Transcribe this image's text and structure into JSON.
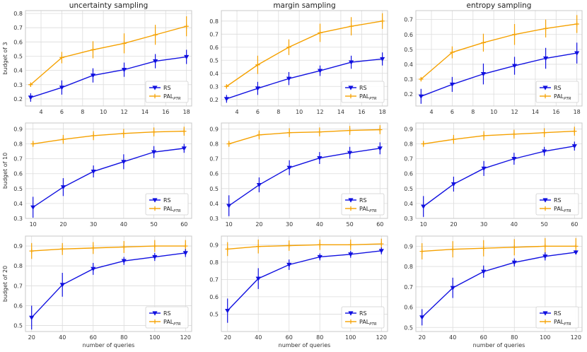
{
  "colors": {
    "rs": "#1010e0",
    "pal": "#f5a100",
    "grid": "#dcdcdc",
    "frame": "#c8c8c8"
  },
  "legend": {
    "rs": "RS",
    "pal_main": "PAL",
    "pal_sub": "PTR",
    "placement": "bottom-right"
  },
  "chart_data": [
    {
      "type": "line",
      "title": "uncertainty sampling",
      "ylabel": "budget of 3",
      "xlabel": "",
      "x": [
        3,
        6,
        9,
        12,
        15,
        18
      ],
      "xticks": [
        4,
        6,
        8,
        10,
        12,
        14,
        16,
        18
      ],
      "xlim": [
        2.5,
        18.5
      ],
      "ylim": [
        0.15,
        0.82
      ],
      "yticks": [
        0.2,
        0.3,
        0.4,
        0.5,
        0.6,
        0.7,
        0.8
      ],
      "series": [
        {
          "name": "RS",
          "values": [
            0.21,
            0.28,
            0.365,
            0.405,
            0.465,
            0.495
          ],
          "err": [
            0.03,
            0.05,
            0.05,
            0.05,
            0.05,
            0.05
          ]
        },
        {
          "name": "PAL_PTR",
          "values": [
            0.3,
            0.49,
            0.545,
            0.59,
            0.65,
            0.71
          ],
          "err": [
            0.01,
            0.04,
            0.06,
            0.07,
            0.07,
            0.07
          ]
        }
      ]
    },
    {
      "type": "line",
      "title": "margin sampling",
      "ylabel": "",
      "xlabel": "",
      "x": [
        3,
        6,
        9,
        12,
        15,
        18
      ],
      "xticks": [
        4,
        6,
        8,
        10,
        12,
        14,
        16,
        18
      ],
      "xlim": [
        2.5,
        18.5
      ],
      "ylim": [
        0.15,
        0.88
      ],
      "yticks": [
        0.2,
        0.3,
        0.4,
        0.5,
        0.6,
        0.7,
        0.8
      ],
      "series": [
        {
          "name": "RS",
          "values": [
            0.205,
            0.285,
            0.36,
            0.42,
            0.485,
            0.51
          ],
          "err": [
            0.03,
            0.05,
            0.05,
            0.04,
            0.05,
            0.05
          ]
        },
        {
          "name": "PAL_PTR",
          "values": [
            0.3,
            0.465,
            0.6,
            0.71,
            0.76,
            0.8
          ],
          "err": [
            0.01,
            0.07,
            0.06,
            0.07,
            0.07,
            0.06
          ]
        }
      ]
    },
    {
      "type": "line",
      "title": "entropy sampling",
      "ylabel": "",
      "xlabel": "",
      "x": [
        3,
        6,
        9,
        12,
        15,
        18
      ],
      "xticks": [
        4,
        6,
        8,
        10,
        12,
        14,
        16,
        18
      ],
      "xlim": [
        2.5,
        18.5
      ],
      "ylim": [
        0.12,
        0.76
      ],
      "yticks": [
        0.2,
        0.3,
        0.4,
        0.5,
        0.6,
        0.7
      ],
      "series": [
        {
          "name": "RS",
          "values": [
            0.185,
            0.265,
            0.335,
            0.39,
            0.44,
            0.475
          ],
          "err": [
            0.05,
            0.05,
            0.07,
            0.06,
            0.07,
            0.07
          ]
        },
        {
          "name": "PAL_PTR",
          "values": [
            0.3,
            0.48,
            0.545,
            0.6,
            0.64,
            0.67
          ],
          "err": [
            0.01,
            0.04,
            0.06,
            0.07,
            0.06,
            0.06
          ]
        }
      ]
    },
    {
      "type": "line",
      "title": "",
      "ylabel": "budget of 10",
      "xlabel": "",
      "x": [
        10,
        20,
        30,
        40,
        50,
        60
      ],
      "xticks": [
        10,
        20,
        30,
        40,
        50,
        60
      ],
      "xlim": [
        7.5,
        62.5
      ],
      "ylim": [
        0.3,
        0.94
      ],
      "yticks": [
        0.3,
        0.4,
        0.5,
        0.6,
        0.7,
        0.8,
        0.9
      ],
      "series": [
        {
          "name": "RS",
          "values": [
            0.375,
            0.51,
            0.615,
            0.68,
            0.745,
            0.77
          ],
          "err": [
            0.07,
            0.06,
            0.04,
            0.05,
            0.04,
            0.03
          ]
        },
        {
          "name": "PAL_PTR",
          "values": [
            0.8,
            0.83,
            0.855,
            0.87,
            0.88,
            0.885
          ],
          "err": [
            0.02,
            0.03,
            0.03,
            0.03,
            0.03,
            0.03
          ]
        }
      ]
    },
    {
      "type": "line",
      "title": "",
      "ylabel": "",
      "xlabel": "",
      "x": [
        10,
        20,
        30,
        40,
        50,
        60
      ],
      "xticks": [
        10,
        20,
        30,
        40,
        50,
        60
      ],
      "xlim": [
        7.5,
        62.5
      ],
      "ylim": [
        0.3,
        0.94
      ],
      "yticks": [
        0.3,
        0.4,
        0.5,
        0.6,
        0.7,
        0.8,
        0.9
      ],
      "series": [
        {
          "name": "RS",
          "values": [
            0.385,
            0.525,
            0.64,
            0.705,
            0.74,
            0.77
          ],
          "err": [
            0.07,
            0.05,
            0.05,
            0.04,
            0.04,
            0.04
          ]
        },
        {
          "name": "PAL_PTR",
          "values": [
            0.8,
            0.86,
            0.875,
            0.88,
            0.89,
            0.895
          ],
          "err": [
            0.02,
            0.03,
            0.03,
            0.03,
            0.03,
            0.03
          ]
        }
      ]
    },
    {
      "type": "line",
      "title": "",
      "ylabel": "",
      "xlabel": "",
      "x": [
        10,
        20,
        30,
        40,
        50,
        60
      ],
      "xticks": [
        10,
        20,
        30,
        40,
        50,
        60
      ],
      "xlim": [
        7.5,
        62.5
      ],
      "ylim": [
        0.3,
        0.94
      ],
      "yticks": [
        0.3,
        0.4,
        0.5,
        0.6,
        0.7,
        0.8,
        0.9
      ],
      "series": [
        {
          "name": "RS",
          "values": [
            0.38,
            0.53,
            0.635,
            0.7,
            0.75,
            0.785
          ],
          "err": [
            0.07,
            0.05,
            0.05,
            0.04,
            0.03,
            0.03
          ]
        },
        {
          "name": "PAL_PTR",
          "values": [
            0.8,
            0.83,
            0.855,
            0.865,
            0.875,
            0.885
          ],
          "err": [
            0.02,
            0.03,
            0.03,
            0.03,
            0.03,
            0.03
          ]
        }
      ]
    },
    {
      "type": "line",
      "title": "",
      "ylabel": "budget of 20",
      "xlabel": "number of queries",
      "x": [
        20,
        40,
        60,
        80,
        100,
        120
      ],
      "xticks": [
        20,
        40,
        60,
        80,
        100,
        120
      ],
      "xlim": [
        16,
        124
      ],
      "ylim": [
        0.47,
        0.95
      ],
      "yticks": [
        0.5,
        0.6,
        0.7,
        0.8,
        0.9
      ],
      "series": [
        {
          "name": "RS",
          "values": [
            0.54,
            0.705,
            0.785,
            0.825,
            0.845,
            0.865
          ],
          "err": [
            0.06,
            0.06,
            0.03,
            0.02,
            0.02,
            0.02
          ]
        },
        {
          "name": "PAL_PTR",
          "values": [
            0.875,
            0.885,
            0.89,
            0.895,
            0.9,
            0.9
          ],
          "err": [
            0.04,
            0.03,
            0.03,
            0.03,
            0.03,
            0.03
          ]
        }
      ]
    },
    {
      "type": "line",
      "title": "",
      "ylabel": "",
      "xlabel": "number of queries",
      "x": [
        20,
        40,
        60,
        80,
        100,
        120
      ],
      "xticks": [
        20,
        40,
        60,
        80,
        100,
        120
      ],
      "xlim": [
        16,
        124
      ],
      "ylim": [
        0.4,
        0.95
      ],
      "yticks": [
        0.5,
        0.6,
        0.7,
        0.8,
        0.9
      ],
      "series": [
        {
          "name": "RS",
          "values": [
            0.52,
            0.705,
            0.785,
            0.83,
            0.845,
            0.865
          ],
          "err": [
            0.07,
            0.06,
            0.03,
            0.02,
            0.02,
            0.02
          ]
        },
        {
          "name": "PAL_PTR",
          "values": [
            0.875,
            0.89,
            0.895,
            0.9,
            0.9,
            0.905
          ],
          "err": [
            0.04,
            0.04,
            0.03,
            0.03,
            0.03,
            0.03
          ]
        }
      ]
    },
    {
      "type": "line",
      "title": "",
      "ylabel": "",
      "xlabel": "number of queries",
      "x": [
        20,
        40,
        60,
        80,
        100,
        120
      ],
      "xticks": [
        20,
        40,
        60,
        80,
        100,
        120
      ],
      "xlim": [
        16,
        124
      ],
      "ylim": [
        0.48,
        0.95
      ],
      "yticks": [
        0.5,
        0.6,
        0.7,
        0.8,
        0.9
      ],
      "series": [
        {
          "name": "RS",
          "values": [
            0.55,
            0.695,
            0.775,
            0.82,
            0.85,
            0.87
          ],
          "err": [
            0.04,
            0.05,
            0.03,
            0.02,
            0.02,
            0.01
          ]
        },
        {
          "name": "PAL_PTR",
          "values": [
            0.875,
            0.885,
            0.89,
            0.895,
            0.9,
            0.9
          ],
          "err": [
            0.04,
            0.04,
            0.04,
            0.04,
            0.04,
            0.04
          ]
        }
      ]
    }
  ]
}
